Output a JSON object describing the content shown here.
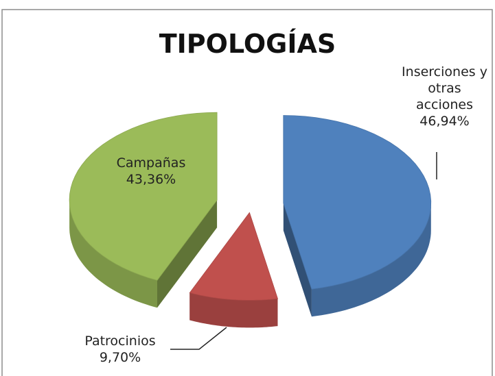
{
  "chart_data": {
    "type": "pie",
    "title": "TIPOLOGÍAS",
    "categories": [
      "Inserciones y otras acciones",
      "Patrocinios",
      "Campañas"
    ],
    "values": [
      46.94,
      9.7,
      43.36
    ],
    "value_labels": [
      "46,94%",
      "9,70%",
      "43,36%"
    ],
    "colors": [
      "#4f81bd",
      "#c0504d",
      "#9bbb59"
    ]
  }
}
